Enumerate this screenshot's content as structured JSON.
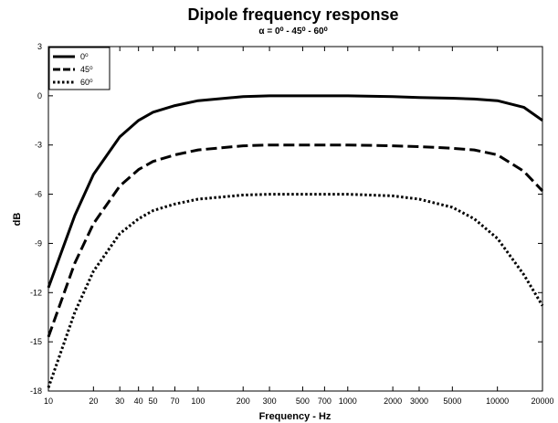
{
  "chart_data": {
    "type": "line",
    "title": "Dipole frequency response",
    "subtitle": "α = 0⁰ - 45⁰ - 60⁰",
    "xlabel": "Frequency - Hz",
    "ylabel": "dB",
    "xscale": "log",
    "xlim": [
      10,
      20000
    ],
    "ylim": [
      -18,
      3
    ],
    "xticks": [
      10,
      20,
      30,
      40,
      50,
      70,
      100,
      200,
      300,
      500,
      700,
      1000,
      2000,
      3000,
      5000,
      10000,
      20000
    ],
    "xtick_labels": [
      "10",
      "20",
      "30",
      "40",
      "50",
      "70",
      "100",
      "200",
      "300",
      "500",
      "700",
      "1000",
      "2000",
      "3000",
      "5000",
      "10000",
      "20000"
    ],
    "yticks": [
      3,
      0,
      -3,
      -6,
      -9,
      -12,
      -15,
      -18
    ],
    "ytick_labels": [
      "3",
      "0",
      "-3",
      "-6",
      "-9",
      "-12",
      "-15",
      "-18"
    ],
    "grid": false,
    "legend_position": "top-left",
    "x": [
      10,
      15,
      20,
      30,
      40,
      50,
      70,
      100,
      200,
      300,
      500,
      1000,
      2000,
      3000,
      5000,
      7000,
      10000,
      15000,
      20000
    ],
    "series": [
      {
        "name": "0⁰",
        "style": "solid",
        "color": "#000000",
        "values": [
          -11.7,
          -7.3,
          -4.8,
          -2.5,
          -1.5,
          -1.0,
          -0.6,
          -0.3,
          -0.05,
          0.0,
          0.0,
          0.0,
          -0.05,
          -0.1,
          -0.15,
          -0.2,
          -0.3,
          -0.7,
          -1.5
        ]
      },
      {
        "name": "45⁰",
        "style": "dashed",
        "color": "#000000",
        "values": [
          -14.7,
          -10.2,
          -7.8,
          -5.5,
          -4.5,
          -4.0,
          -3.6,
          -3.3,
          -3.05,
          -3.0,
          -3.0,
          -3.0,
          -3.05,
          -3.1,
          -3.2,
          -3.3,
          -3.6,
          -4.6,
          -5.8
        ]
      },
      {
        "name": "60⁰",
        "style": "dotted",
        "color": "#000000",
        "values": [
          -17.8,
          -13.2,
          -10.7,
          -8.4,
          -7.5,
          -7.0,
          -6.6,
          -6.3,
          -6.05,
          -6.0,
          -6.0,
          -6.0,
          -6.1,
          -6.3,
          -6.8,
          -7.5,
          -8.7,
          -10.9,
          -12.8
        ]
      }
    ]
  }
}
